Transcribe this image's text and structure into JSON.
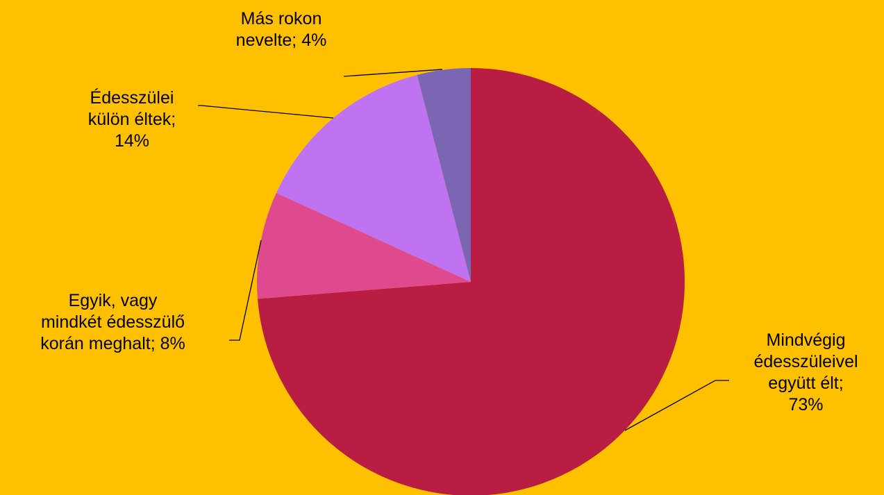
{
  "chart_data": {
    "type": "pie",
    "categories": [
      "Mindvégig édesszüleivel együtt élt;",
      "Egyik, vagy mindkét édesszülő korán meghalt;",
      "Édesszülei külön éltek;",
      "Más rokon nevelte;"
    ],
    "values": [
      73,
      8,
      14,
      4
    ],
    "value_labels": [
      "73%",
      "8%",
      "14%",
      "4%"
    ],
    "colors": [
      "#B91D43",
      "#DF4A8E",
      "#BF73F0",
      "#7B66B3"
    ]
  }
}
